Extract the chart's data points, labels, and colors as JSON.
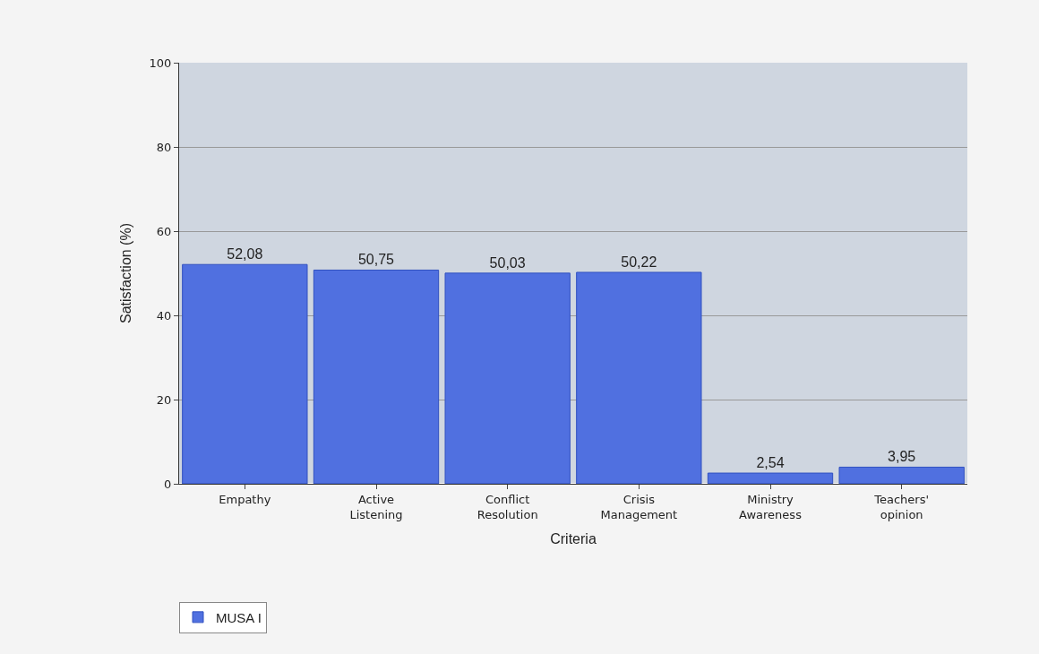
{
  "chart_data": {
    "type": "bar",
    "xlabel": "Criteria",
    "ylabel": "Satisfaction (%)",
    "categories": [
      "Empathy",
      "Active Listening",
      "Conflict Resolution",
      "Crisis Management",
      "Ministry Awareness",
      "Teachers' opinion"
    ],
    "series": [
      {
        "name": "MUSA I",
        "color": "#5070e0",
        "values": [
          52.08,
          50.75,
          50.03,
          50.22,
          2.54,
          3.95
        ],
        "value_labels": [
          "52,08",
          "50,75",
          "50,03",
          "50,22",
          "2,54",
          "3,95"
        ]
      }
    ],
    "ylim": [
      0,
      100
    ],
    "yticks": [
      0,
      20,
      40,
      60,
      80,
      100
    ],
    "grid": true,
    "legend": "bottom left"
  }
}
